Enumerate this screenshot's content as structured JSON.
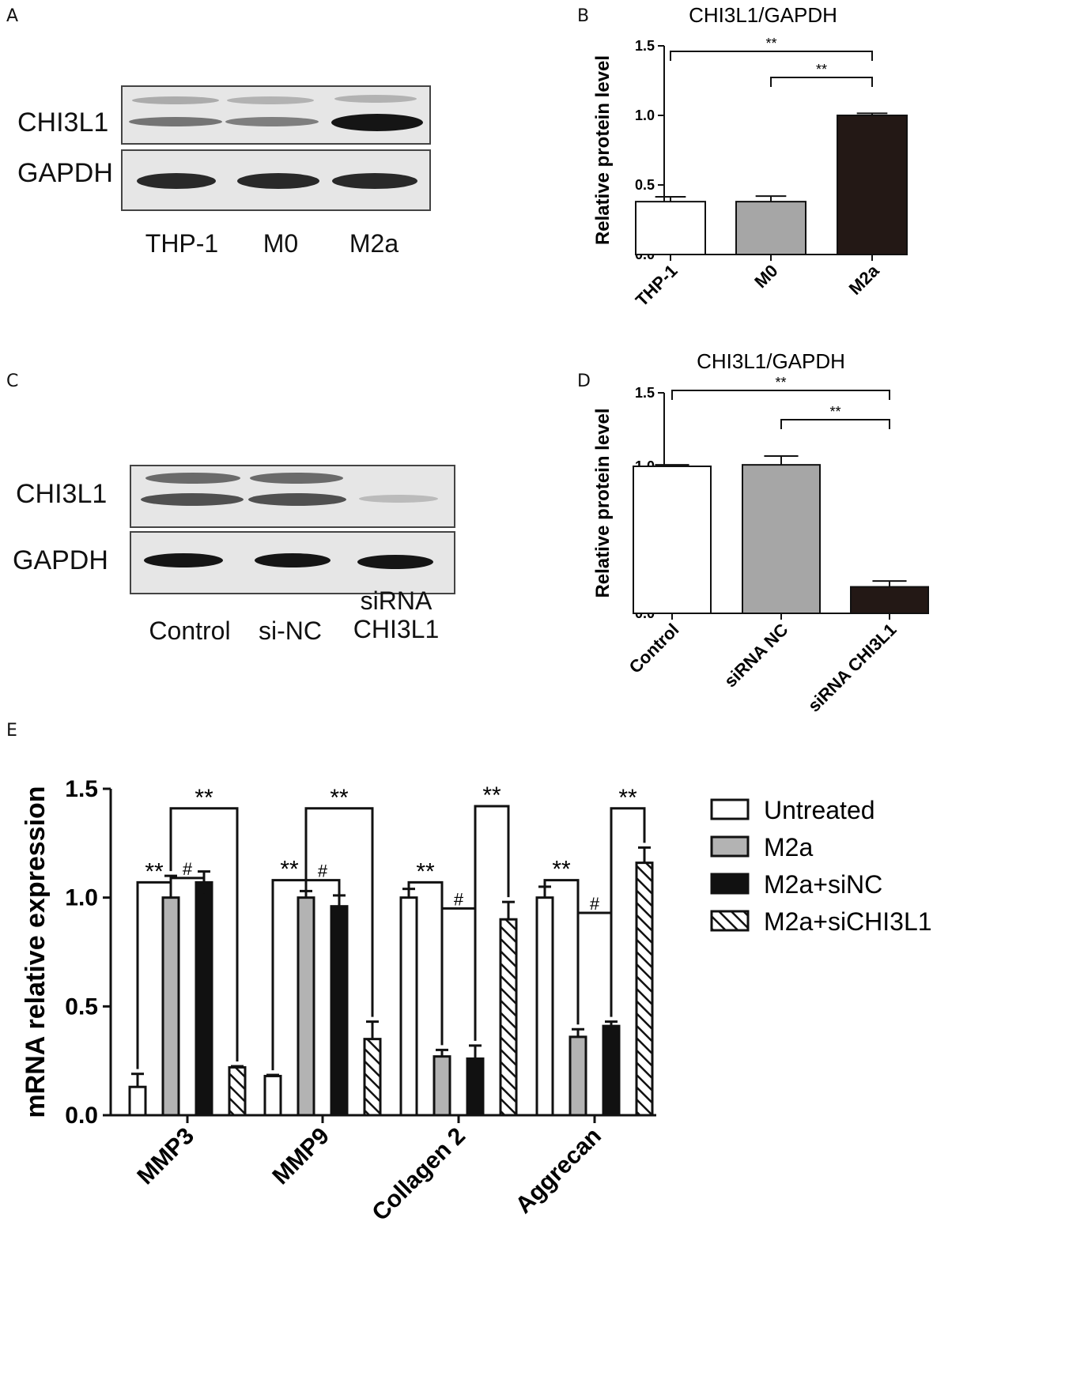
{
  "panels": {
    "a": {
      "letter": "A",
      "row_labels": [
        "CHI3L1",
        "GAPDH"
      ],
      "lane_labels": [
        "THP-1",
        "M0",
        "M2a"
      ]
    },
    "c": {
      "letter": "C",
      "row_labels": [
        "CHI3L1",
        "GAPDH"
      ],
      "lane_labels": [
        "Control",
        "si-NC",
        "siRNA\nCHI3L1"
      ]
    },
    "b_letter": "B",
    "d_letter": "D",
    "e_letter": "E"
  },
  "chart_data": [
    {
      "id": "B",
      "type": "bar",
      "title": "CHI3L1/GAPDH",
      "ylabel": "Relative protein level",
      "xlabel": "",
      "ylim": [
        0,
        1.5
      ],
      "yticks": [
        "0.0",
        "0.5",
        "1.0",
        "1.5"
      ],
      "categories": [
        "THP-1",
        "M0",
        "M2a"
      ],
      "values": [
        0.38,
        0.38,
        1.0
      ],
      "errors": [
        0.035,
        0.04,
        0.015
      ],
      "fills": [
        "#ffffff",
        "#a6a6a6",
        "#231815"
      ],
      "significance": [
        {
          "from": 0,
          "to": 2,
          "label": "**"
        },
        {
          "from": 1,
          "to": 2,
          "label": "**"
        }
      ]
    },
    {
      "id": "D",
      "type": "bar",
      "title": "CHI3L1/GAPDH",
      "ylabel": "Relative protein level",
      "xlabel": "",
      "ylim": [
        0,
        1.5
      ],
      "yticks": [
        "0.0",
        "0.5",
        "1.0",
        "1.5"
      ],
      "categories": [
        "Control",
        "siRNA NC",
        "siRNA CHI3L1"
      ],
      "values": [
        1.0,
        1.01,
        0.18
      ],
      "errors": [
        0.01,
        0.06,
        0.04
      ],
      "fills": [
        "#ffffff",
        "#a6a6a6",
        "#231815"
      ],
      "significance": [
        {
          "from": 0,
          "to": 2,
          "label": "**"
        },
        {
          "from": 1,
          "to": 2,
          "label": "**"
        }
      ]
    },
    {
      "id": "E",
      "type": "bar",
      "title": "",
      "ylabel": "mRNA relative expression",
      "xlabel": "",
      "ylim": [
        0,
        1.5
      ],
      "yticks": [
        "0.0",
        "0.5",
        "1.0",
        "1.5"
      ],
      "categories": [
        "MMP3",
        "MMP9",
        "Collagen 2",
        "Aggrecan"
      ],
      "series": [
        {
          "name": "Untreated",
          "fill": "#ffffff",
          "pattern": "none",
          "values": [
            0.13,
            0.18,
            1.0,
            1.0
          ],
          "errors": [
            0.06,
            0.005,
            0.04,
            0.05
          ]
        },
        {
          "name": "M2a",
          "fill": "#b3b3b3",
          "pattern": "none",
          "values": [
            1.0,
            1.0,
            0.27,
            0.36
          ],
          "errors": [
            0.1,
            0.03,
            0.03,
            0.035
          ]
        },
        {
          "name": "M2a+siNC",
          "fill": "#111111",
          "pattern": "none",
          "values": [
            1.07,
            0.96,
            0.26,
            0.41
          ],
          "errors": [
            0.05,
            0.05,
            0.06,
            0.02
          ]
        },
        {
          "name": "M2a+siCHI3L1",
          "fill": "#ffffff",
          "pattern": "hatch",
          "values": [
            0.22,
            0.35,
            0.9,
            1.16
          ],
          "errors": [
            0.005,
            0.08,
            0.08,
            0.07
          ]
        }
      ],
      "significance": [
        {
          "category": 0,
          "from": 0,
          "to": 1,
          "label": "**"
        },
        {
          "category": 0,
          "from": 1,
          "to": 2,
          "label": "#"
        },
        {
          "category": 0,
          "from": 1,
          "to": 3,
          "label": "**"
        },
        {
          "category": 1,
          "from": 0,
          "to": 1,
          "label": "**"
        },
        {
          "category": 1,
          "from": 1,
          "to": 2,
          "label": "#"
        },
        {
          "category": 1,
          "from": 1,
          "to": 3,
          "label": "**"
        },
        {
          "category": 2,
          "from": 0,
          "to": 1,
          "label": "**"
        },
        {
          "category": 2,
          "from": 1,
          "to": 2,
          "label": "#"
        },
        {
          "category": 2,
          "from": 2,
          "to": 3,
          "label": "**"
        },
        {
          "category": 3,
          "from": 0,
          "to": 1,
          "label": "**"
        },
        {
          "category": 3,
          "from": 1,
          "to": 2,
          "label": "#"
        },
        {
          "category": 3,
          "from": 2,
          "to": 3,
          "label": "**"
        }
      ],
      "legend_position": "right"
    }
  ]
}
